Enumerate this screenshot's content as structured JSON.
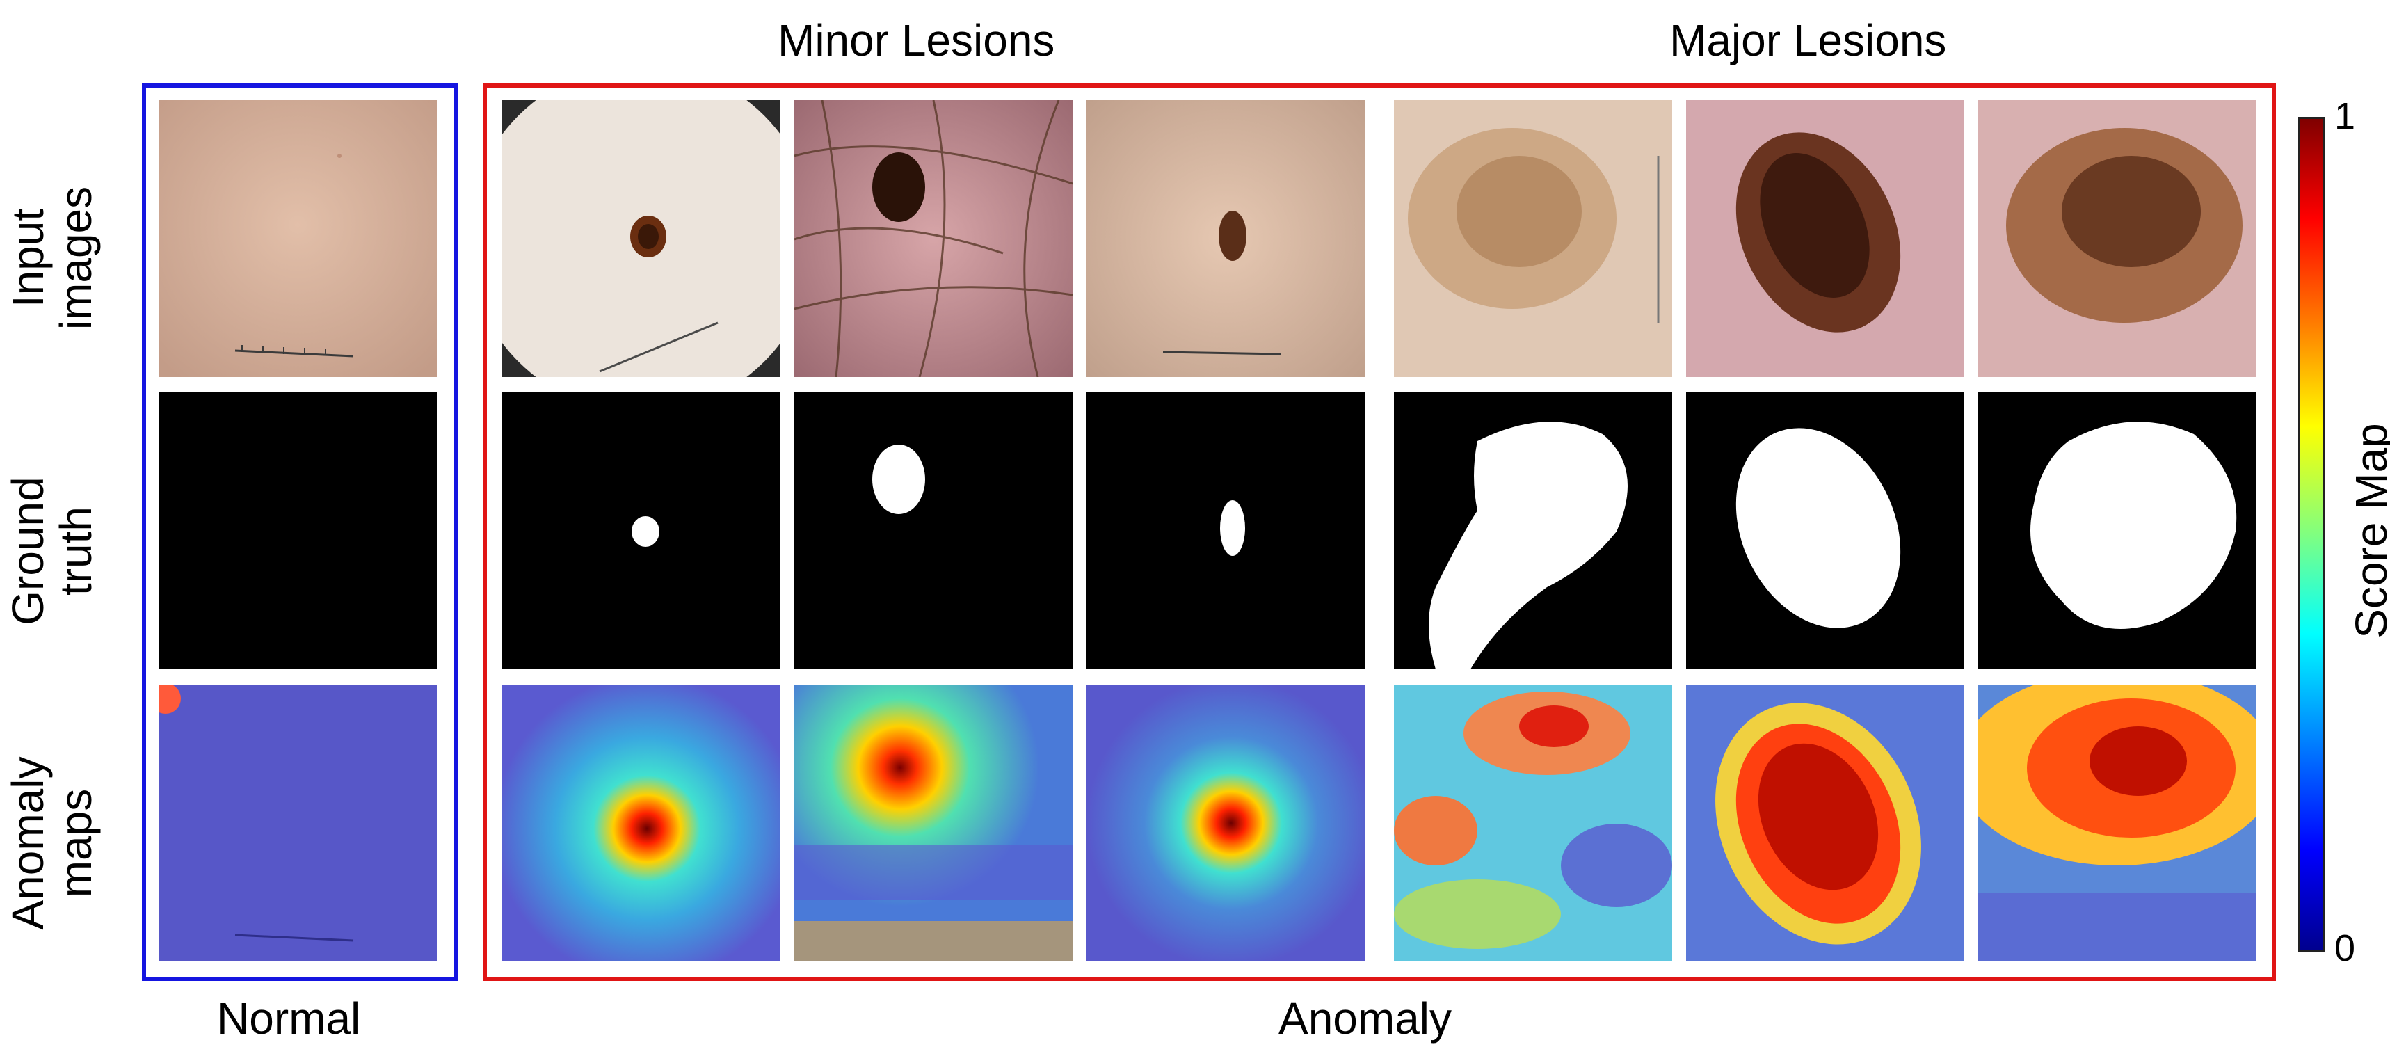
{
  "headers": {
    "minor": "Minor Lesions",
    "major": "Major Lesions"
  },
  "row_labels": [
    {
      "line1": "Input",
      "line2": "images"
    },
    {
      "line1": "Ground",
      "line2": "truth"
    },
    {
      "line1": "Anomaly",
      "line2": "maps"
    }
  ],
  "footers": {
    "normal": "Normal",
    "anomaly": "Anomaly"
  },
  "colorbar": {
    "label": "Score Map",
    "max": "1",
    "min": "0"
  },
  "colors": {
    "normal_frame": "#1515e0",
    "anomaly_frame": "#e01515"
  },
  "columns": [
    {
      "group": "normal",
      "lesion": "none"
    },
    {
      "group": "minor",
      "lesion": "small-round"
    },
    {
      "group": "minor",
      "lesion": "medium-dark-with-hairs"
    },
    {
      "group": "minor",
      "lesion": "small-oval"
    },
    {
      "group": "major",
      "lesion": "large-faint"
    },
    {
      "group": "major",
      "lesion": "large-dark-oval"
    },
    {
      "group": "major",
      "lesion": "large-round"
    }
  ]
}
